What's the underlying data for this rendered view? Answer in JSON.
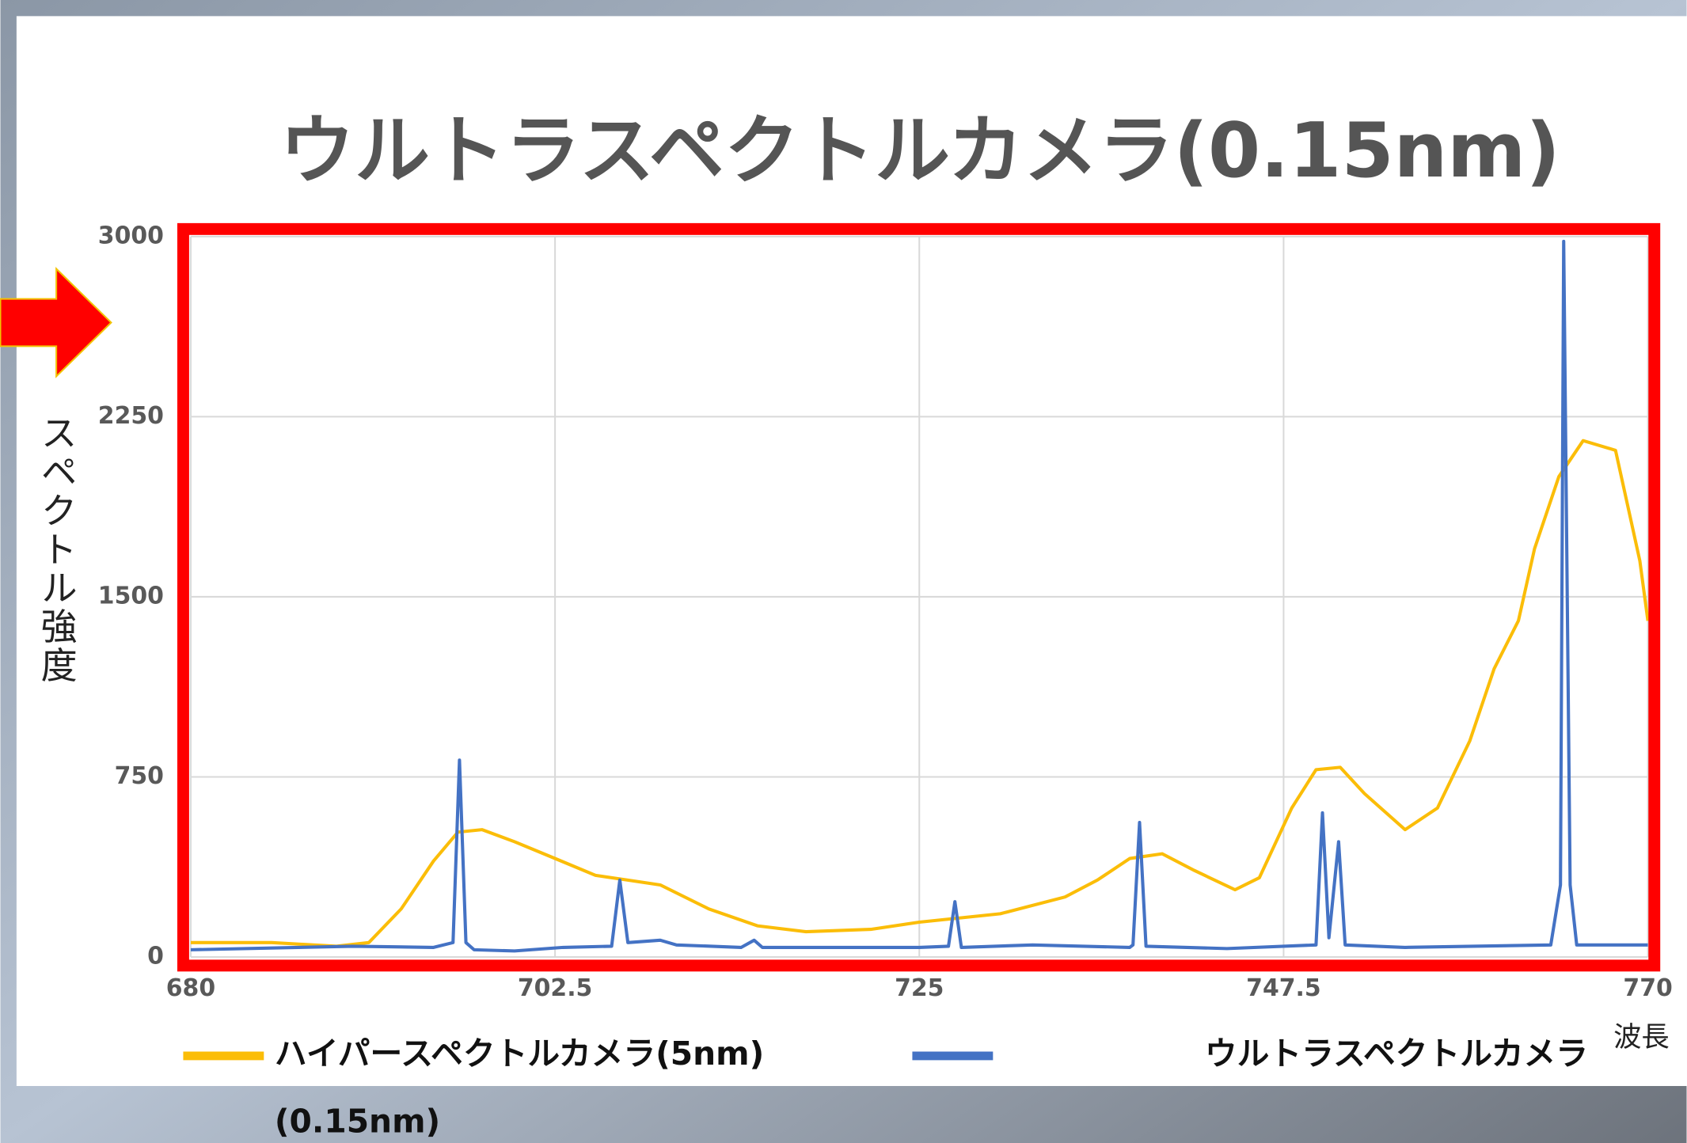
{
  "chart_data": {
    "type": "line",
    "title": "ウルトラスペクトルカメラ(0.15nm)",
    "y_label": "スペクトル強度",
    "x_label": "波長",
    "xlim": [
      680,
      770
    ],
    "xticks": [
      680,
      702.5,
      725,
      747.5,
      770
    ],
    "ylim": [
      0,
      3000
    ],
    "yticks": [
      0,
      750,
      1500,
      2250,
      3000
    ],
    "grid": true,
    "legend": "bottom",
    "series": [
      {
        "name": "ハイパースペクトルカメラ(5nm)",
        "color": "#fbbd08",
        "x": [
          680,
          685,
          689,
          691,
          693,
          695,
          696.5,
          698,
          700,
          702.5,
          705,
          707,
          709,
          712,
          715,
          718,
          722,
          725,
          730,
          734,
          736,
          738,
          740,
          742,
          744.5,
          746,
          748,
          749.5,
          751,
          752.5,
          755,
          757,
          759,
          760.5,
          762,
          763,
          764.5,
          766,
          768,
          769.5,
          770
        ],
        "values": [
          60,
          60,
          45,
          60,
          200,
          400,
          520,
          530,
          480,
          410,
          340,
          320,
          300,
          200,
          130,
          105,
          115,
          145,
          180,
          250,
          320,
          410,
          430,
          360,
          280,
          330,
          620,
          780,
          790,
          680,
          530,
          620,
          900,
          1200,
          1400,
          1700,
          2000,
          2150,
          2110,
          1650,
          1400
        ]
      },
      {
        "name": "ウルトラスペクトルカメラ(0.15nm)",
        "color": "#4472c4",
        "x": [
          680,
          690,
          695,
          696.2,
          696.6,
          697,
          697.5,
          700,
          703,
          706,
          706.5,
          707,
          709,
          710,
          714,
          714.8,
          715.3,
          718,
          725,
          726.8,
          727.2,
          727.6,
          732,
          738,
          738.2,
          738.6,
          739,
          744,
          749.5,
          749.9,
          750.3,
          750.9,
          751.3,
          755,
          764,
          764.6,
          764.8,
          765.2,
          765.6,
          770
        ],
        "values": [
          30,
          45,
          40,
          60,
          820,
          60,
          30,
          25,
          40,
          45,
          320,
          60,
          70,
          50,
          40,
          70,
          40,
          40,
          40,
          45,
          230,
          40,
          50,
          40,
          50,
          560,
          45,
          35,
          50,
          600,
          80,
          480,
          50,
          40,
          50,
          300,
          2980,
          300,
          50,
          50
        ]
      }
    ]
  }
}
